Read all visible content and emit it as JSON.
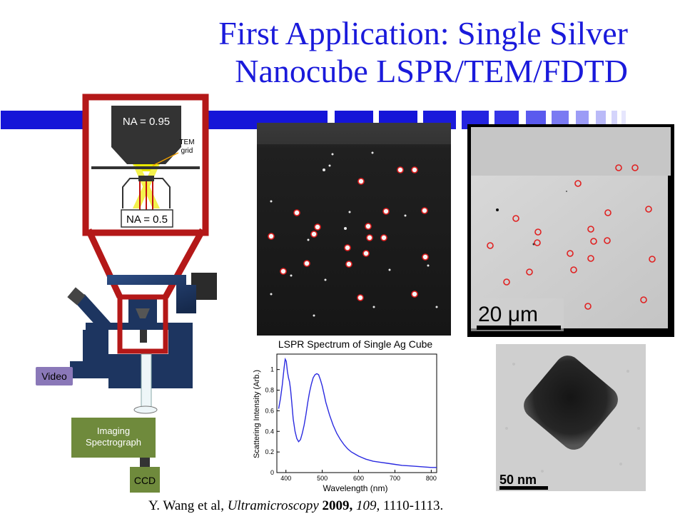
{
  "slide": {
    "title_line1": "First Application: Single Silver",
    "title_line2": "Nanocube LSPR/TEM/FDTD",
    "citation": {
      "authors": "Y. Wang et al, ",
      "journal": "Ultramicroscopy",
      "year": " 2009,",
      "volume": " 109",
      "pages": ", 1110-1113."
    }
  },
  "setup": {
    "na_objective": "NA = 0.95",
    "na_condenser": "NA = 0.5",
    "tem_label": "TEM\ngrid",
    "video_label": "Video",
    "spectrograph_label": "Imaging\nSpectrograph",
    "ccd_label": "CCD"
  },
  "images": {
    "tem_scale": "20 μm",
    "hrtem_scale": "50 nm"
  },
  "colors": {
    "title": "#1a1adb",
    "frame_red": "#b41818",
    "marker_red": "#e02020",
    "spectrum_line": "#2a2ae0",
    "microscope_blue": "#203a66",
    "spectrograph_green": "#6f8a3c",
    "video_purple": "#8a78b8"
  },
  "chart_data": {
    "type": "line",
    "title": "LSPR Spectrum of Single Ag Cube",
    "xlabel": "Wavelength (nm)",
    "ylabel": "Scattering Intensity (Arb.)",
    "xlim": [
      375,
      815
    ],
    "ylim": [
      0,
      1.15
    ],
    "xticks": [
      400,
      500,
      600,
      700,
      800
    ],
    "yticks": [
      0,
      0.2,
      0.4,
      0.6,
      0.8,
      1
    ],
    "series": [
      {
        "x": [
          380,
          385,
          390,
          395,
          398,
          401,
          404,
          407,
          410,
          413,
          416,
          420,
          425,
          430,
          435,
          440,
          445,
          450,
          455,
          460,
          465,
          470,
          475,
          480,
          485,
          490,
          495,
          500,
          505,
          510,
          520,
          530,
          540,
          550,
          560,
          570,
          580,
          590,
          600,
          620,
          640,
          660,
          680,
          700,
          720,
          740,
          760,
          780,
          800,
          815
        ],
        "y": [
          0.62,
          0.72,
          0.85,
          1.02,
          1.1,
          1.08,
          0.98,
          0.92,
          0.88,
          0.8,
          0.68,
          0.52,
          0.4,
          0.33,
          0.3,
          0.32,
          0.38,
          0.46,
          0.56,
          0.68,
          0.78,
          0.86,
          0.92,
          0.95,
          0.96,
          0.95,
          0.9,
          0.84,
          0.76,
          0.68,
          0.56,
          0.46,
          0.38,
          0.32,
          0.27,
          0.23,
          0.2,
          0.18,
          0.16,
          0.13,
          0.11,
          0.1,
          0.09,
          0.08,
          0.07,
          0.065,
          0.06,
          0.055,
          0.05,
          0.05
        ]
      }
    ]
  }
}
